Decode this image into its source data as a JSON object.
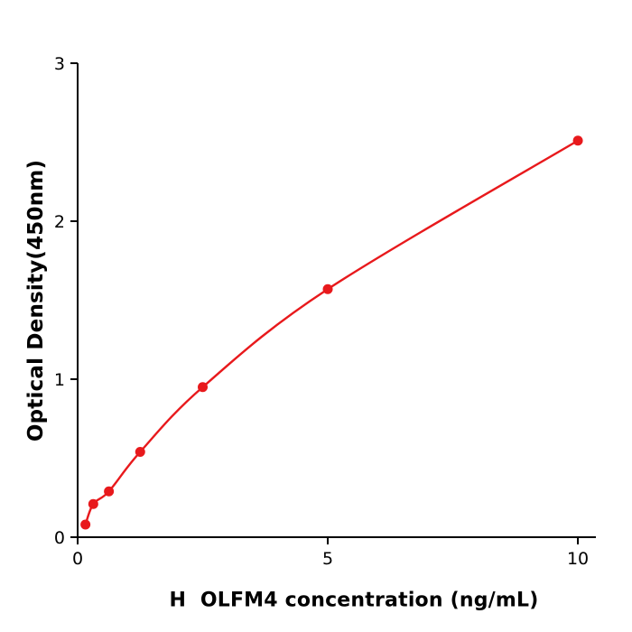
{
  "chart_data": {
    "type": "scatter",
    "title": "",
    "xlabel": "H  OLFM4 concentration (ng/mL)",
    "ylabel": "Optical Density(450nm)",
    "xlim": [
      0,
      10.36
    ],
    "ylim": [
      0,
      3
    ],
    "xticks": [
      0,
      5,
      10
    ],
    "yticks": [
      0,
      1,
      2,
      3
    ],
    "grid": false,
    "legend_position": "none",
    "curve_style": "smooth",
    "line_color": "#e8191c",
    "marker_color": "#e8191c",
    "axis_color": "#000000",
    "series": [
      {
        "name": "H OLFM4 standard curve",
        "x": [
          0.156,
          0.3125,
          0.625,
          1.25,
          2.5,
          5,
          10
        ],
        "y": [
          0.08,
          0.21,
          0.29,
          0.54,
          0.95,
          1.57,
          2.51
        ]
      }
    ]
  }
}
